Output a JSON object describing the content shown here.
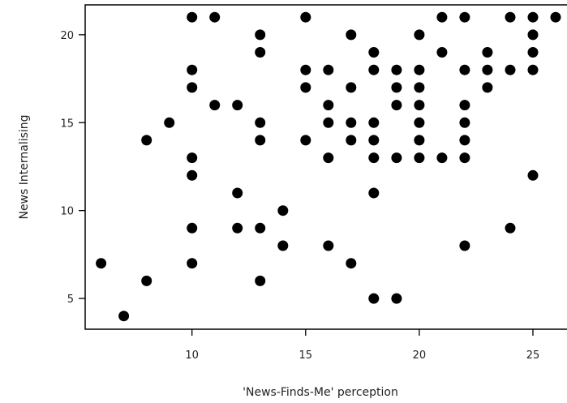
{
  "chart_data": {
    "type": "scatter",
    "title": "",
    "xlabel": "'News-Finds-Me' perception",
    "ylabel": "News Internalising",
    "xlim": [
      5.3,
      26.5
    ],
    "ylim": [
      3.25,
      21.7
    ],
    "xticks": [
      10,
      15,
      20,
      25
    ],
    "yticks": [
      5,
      10,
      15,
      20
    ],
    "grid": false,
    "marker_color": "#000000",
    "points": [
      [
        6,
        7
      ],
      [
        7,
        4
      ],
      [
        8,
        6
      ],
      [
        8,
        14
      ],
      [
        9,
        15
      ],
      [
        10,
        21
      ],
      [
        10,
        18
      ],
      [
        10,
        17
      ],
      [
        10,
        13
      ],
      [
        10,
        12
      ],
      [
        10,
        9
      ],
      [
        10,
        7
      ],
      [
        11,
        21
      ],
      [
        11,
        16
      ],
      [
        12,
        16
      ],
      [
        12,
        11
      ],
      [
        12,
        9
      ],
      [
        13,
        20
      ],
      [
        13,
        19
      ],
      [
        13,
        15
      ],
      [
        13,
        14
      ],
      [
        13,
        9
      ],
      [
        13,
        6
      ],
      [
        14,
        10
      ],
      [
        14,
        8
      ],
      [
        15,
        21
      ],
      [
        15,
        18
      ],
      [
        15,
        17
      ],
      [
        15,
        14
      ],
      [
        16,
        18
      ],
      [
        16,
        16
      ],
      [
        16,
        15
      ],
      [
        16,
        13
      ],
      [
        16,
        8
      ],
      [
        17,
        20
      ],
      [
        17,
        17
      ],
      [
        17,
        15
      ],
      [
        17,
        14
      ],
      [
        17,
        7
      ],
      [
        18,
        19
      ],
      [
        18,
        18
      ],
      [
        18,
        15
      ],
      [
        18,
        14
      ],
      [
        18,
        13
      ],
      [
        18,
        11
      ],
      [
        18,
        5
      ],
      [
        19,
        18
      ],
      [
        19,
        17
      ],
      [
        19,
        16
      ],
      [
        19,
        13
      ],
      [
        19,
        5
      ],
      [
        20,
        20
      ],
      [
        20,
        18
      ],
      [
        20,
        17
      ],
      [
        20,
        16
      ],
      [
        20,
        15
      ],
      [
        20,
        14
      ],
      [
        20,
        13
      ],
      [
        21,
        21
      ],
      [
        21,
        19
      ],
      [
        21,
        13
      ],
      [
        22,
        21
      ],
      [
        22,
        18
      ],
      [
        22,
        16
      ],
      [
        22,
        15
      ],
      [
        22,
        14
      ],
      [
        22,
        13
      ],
      [
        22,
        8
      ],
      [
        23,
        19
      ],
      [
        23,
        18
      ],
      [
        23,
        17
      ],
      [
        24,
        21
      ],
      [
        24,
        18
      ],
      [
        24,
        9
      ],
      [
        25,
        21
      ],
      [
        25,
        20
      ],
      [
        25,
        19
      ],
      [
        25,
        18
      ],
      [
        25,
        12
      ],
      [
        26,
        21
      ]
    ]
  }
}
